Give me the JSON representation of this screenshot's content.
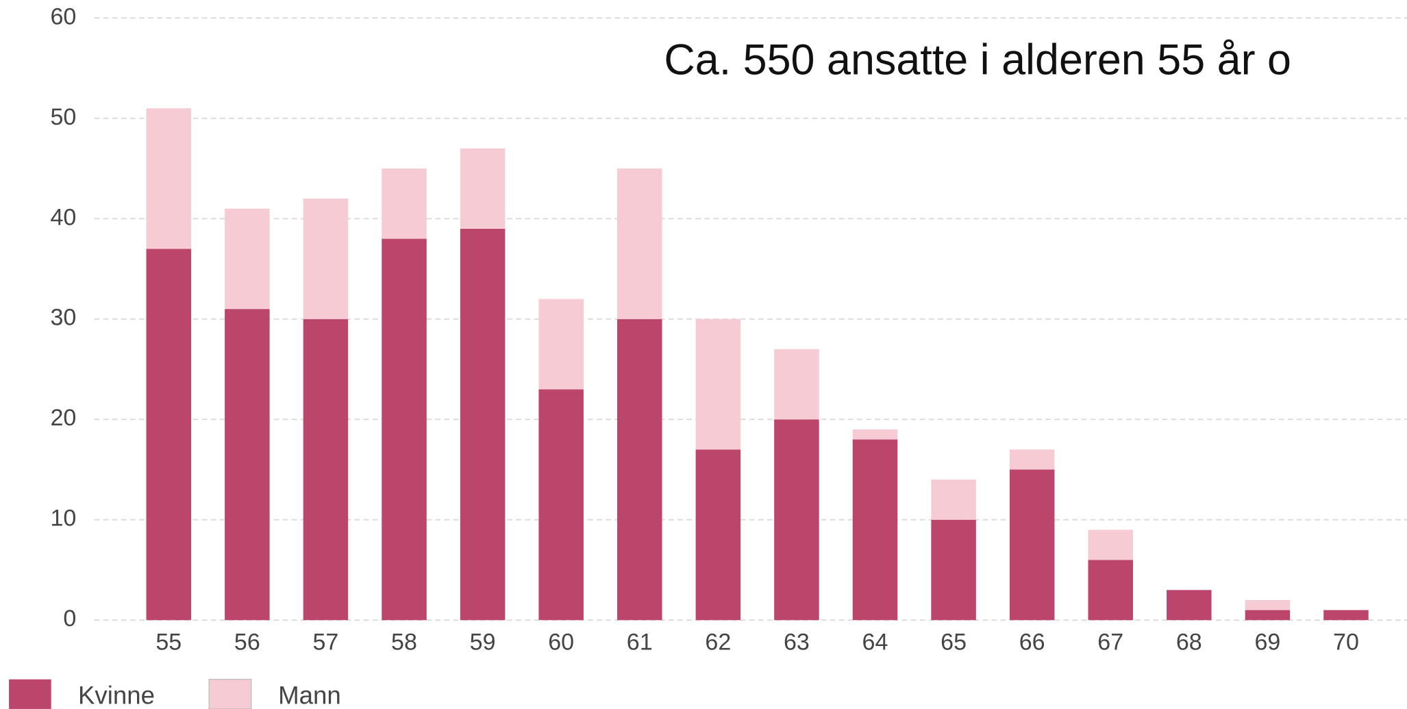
{
  "chart_data": {
    "type": "stacked_bar",
    "title": "Ca. 550 ansatte i alderen 55 år o",
    "categories": [
      "55",
      "56",
      "57",
      "58",
      "59",
      "60",
      "61",
      "62",
      "63",
      "64",
      "65",
      "66",
      "67",
      "68",
      "69",
      "70"
    ],
    "series": [
      {
        "name": "Kvinne",
        "color": "#bc456c",
        "values": [
          37,
          31,
          30,
          38,
          39,
          23,
          30,
          17,
          20,
          18,
          10,
          15,
          6,
          3,
          1,
          1
        ]
      },
      {
        "name": "Mann",
        "color": "#f6cbd3",
        "values": [
          14,
          10,
          12,
          7,
          8,
          9,
          15,
          13,
          7,
          1,
          4,
          2,
          3,
          0,
          1,
          0
        ]
      }
    ],
    "ylim": [
      0,
      60
    ],
    "yticks": [
      0,
      10,
      20,
      30,
      40,
      50,
      60
    ],
    "grid": true,
    "legend": "bottom-left"
  }
}
